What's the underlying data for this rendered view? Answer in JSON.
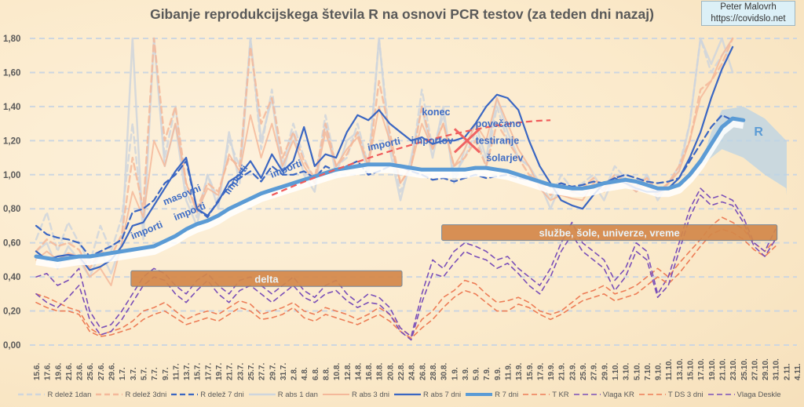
{
  "chart_data": {
    "type": "line",
    "title": "Gibanje reprodukcijskega števila R na osnovi PCR testov (za teden dni nazaj)",
    "credit": [
      "Peter Malovrh",
      "https://covidslo.net"
    ],
    "xlabel": "",
    "ylabel": "",
    "ylim": [
      0,
      1.8
    ],
    "yticks": [
      "0,00",
      "0,20",
      "0,40",
      "0,60",
      "0,80",
      "1,00",
      "1,20",
      "1,40",
      "1,60",
      "1,80"
    ],
    "ytick_values": [
      0,
      0.2,
      0.4,
      0.6,
      0.8,
      1.0,
      1.2,
      1.4,
      1.6,
      1.8
    ],
    "grid": true,
    "legend_position": "bottom",
    "x": [
      "15.6.",
      "17.6.",
      "19.6.",
      "21.6.",
      "23.6.",
      "25.6.",
      "27.6.",
      "29.6.",
      "1.7.",
      "3.7.",
      "5.7.",
      "7.7.",
      "9.7.",
      "11.7.",
      "13.7.",
      "15.7.",
      "17.7.",
      "19.7.",
      "21.7.",
      "23.7.",
      "25.7.",
      "27.7.",
      "29.7.",
      "31.7.",
      "2.8.",
      "4.8.",
      "6.8.",
      "8.8.",
      "10.8.",
      "12.8.",
      "14.8.",
      "16.8.",
      "18.8.",
      "20.8.",
      "22.8.",
      "24.8.",
      "26.8.",
      "28.8.",
      "30.8.",
      "1.9.",
      "3.9.",
      "5.9.",
      "7.9.",
      "9.9.",
      "11.9.",
      "13.9.",
      "15.9.",
      "17.9.",
      "19.9.",
      "21.9.",
      "23.9.",
      "25.9.",
      "27.9.",
      "29.9.",
      "1.10.",
      "3.10.",
      "5.10.",
      "7.10.",
      "9.10.",
      "11.10.",
      "13.10.",
      "15.10.",
      "17.10.",
      "19.10.",
      "21.10.",
      "23.10.",
      "25.10.",
      "27.10.",
      "29.10.",
      "31.10.",
      "2.11.",
      "4.11."
    ],
    "series": [
      {
        "name": "R delež 1dan",
        "color": "#cfd5dc",
        "style": "dash",
        "width": 2.5,
        "values": [
          0.62,
          0.78,
          0.55,
          0.72,
          0.6,
          0.48,
          0.7,
          0.55,
          0.75,
          1.3,
          0.7,
          1.8,
          1.1,
          1.4,
          0.9,
          0.75,
          1.0,
          0.85,
          1.2,
          1.05,
          1.8,
          1.15,
          1.5,
          1.05,
          1.3,
          1.1,
          0.95,
          1.35,
          1.05,
          1.1,
          1.3,
          1.05,
          1.8,
          1.2,
          0.9,
          1.05,
          1.5,
          1.15,
          1.35,
          1.0,
          1.1,
          1.25,
          1.05,
          1.4,
          1.2,
          1.1,
          1.05,
          0.95,
          0.85,
          1.0,
          0.92,
          0.95,
          1.0,
          0.9,
          1.05,
          0.98,
          0.92,
          1.0,
          0.88,
          0.95,
          1.05,
          1.3,
          1.8,
          1.6,
          1.7,
          1.8,
          null,
          null,
          null,
          null,
          null,
          null
        ]
      },
      {
        "name": "R delež 3dni",
        "color": "#f4b89a",
        "style": "dash",
        "width": 2.5,
        "values": [
          0.55,
          0.62,
          0.58,
          0.6,
          0.56,
          0.45,
          0.55,
          0.52,
          0.65,
          1.1,
          0.8,
          1.8,
          1.2,
          1.4,
          0.95,
          0.8,
          0.95,
          0.9,
          1.1,
          1.05,
          1.75,
          1.3,
          1.45,
          1.1,
          1.25,
          1.08,
          0.98,
          1.3,
          1.05,
          1.12,
          1.25,
          1.05,
          1.55,
          1.25,
          0.95,
          1.05,
          1.4,
          1.15,
          1.3,
          1.05,
          1.1,
          1.2,
          1.05,
          1.3,
          1.2,
          1.1,
          1.0,
          0.95,
          0.88,
          0.95,
          0.9,
          0.92,
          0.98,
          0.92,
          1.0,
          0.96,
          0.93,
          0.98,
          0.9,
          0.95,
          1.05,
          1.2,
          1.5,
          1.55,
          1.65,
          1.8,
          null,
          null,
          null,
          null,
          null,
          null
        ]
      },
      {
        "name": "R delež 7 dni",
        "color": "#3a66c2",
        "style": "dash",
        "width": 2.2,
        "values": [
          0.7,
          0.65,
          0.63,
          0.62,
          0.6,
          0.52,
          0.55,
          0.58,
          0.62,
          0.78,
          0.8,
          0.85,
          0.95,
          1.0,
          1.08,
          0.8,
          0.75,
          0.85,
          0.93,
          0.98,
          1.02,
          0.96,
          1.05,
          1.0,
          1.0,
          1.02,
          0.98,
          1.05,
          1.02,
          1.05,
          1.08,
          1.0,
          1.02,
          1.05,
          1.05,
          1.02,
          1.0,
          0.97,
          0.98,
          0.96,
          0.98,
          1.0,
          0.98,
          0.99,
          1.0,
          0.98,
          0.97,
          0.95,
          0.93,
          0.95,
          0.93,
          0.94,
          0.96,
          0.95,
          0.98,
          1.0,
          0.98,
          0.96,
          0.95,
          0.96,
          0.98,
          1.08,
          1.18,
          1.28,
          1.35,
          1.32,
          null,
          null,
          null,
          null,
          null,
          null
        ]
      },
      {
        "name": "R abs 1 dan",
        "color": "#cfd5dc",
        "style": "solid",
        "width": 2.5,
        "values": [
          0.55,
          0.6,
          0.45,
          0.58,
          0.5,
          0.4,
          0.55,
          0.42,
          0.6,
          1.8,
          0.62,
          1.8,
          1.05,
          1.3,
          0.85,
          0.7,
          1.0,
          0.8,
          1.25,
          0.95,
          1.8,
          1.2,
          1.45,
          1.0,
          1.25,
          1.0,
          0.9,
          1.3,
          1.0,
          1.2,
          1.25,
          1.0,
          1.8,
          1.15,
          0.85,
          1.1,
          1.4,
          1.1,
          1.4,
          0.95,
          1.15,
          1.3,
          1.1,
          1.45,
          1.25,
          1.1,
          1.05,
          0.95,
          0.8,
          0.95,
          0.9,
          0.88,
          0.95,
          0.85,
          1.0,
          0.98,
          0.9,
          1.0,
          0.85,
          0.95,
          1.02,
          1.3,
          1.8,
          1.65,
          1.8,
          1.6,
          null,
          null,
          null,
          null,
          null,
          null
        ]
      },
      {
        "name": "R abs 3 dni",
        "color": "#f4b89a",
        "style": "solid",
        "width": 2,
        "values": [
          0.5,
          0.55,
          0.5,
          0.54,
          0.52,
          0.4,
          0.45,
          0.35,
          0.6,
          0.9,
          0.75,
          1.2,
          1.05,
          1.3,
          0.95,
          0.78,
          0.92,
          0.88,
          1.12,
          1.02,
          1.35,
          1.1,
          1.3,
          1.05,
          1.2,
          1.05,
          0.95,
          1.25,
          1.05,
          1.15,
          1.22,
          1.05,
          1.4,
          1.2,
          0.95,
          1.05,
          1.3,
          1.15,
          1.3,
          1.05,
          1.15,
          1.3,
          1.2,
          1.45,
          1.3,
          1.15,
          1.05,
          0.92,
          0.85,
          0.88,
          0.86,
          0.85,
          0.95,
          0.9,
          0.98,
          0.95,
          0.9,
          0.95,
          0.88,
          0.95,
          1.02,
          1.2,
          1.45,
          1.55,
          1.7,
          1.8,
          null,
          null,
          null,
          null,
          null,
          null
        ]
      },
      {
        "name": "R abs 7 dni",
        "color": "#3a66c2",
        "style": "solid",
        "width": 2.2,
        "values": [
          0.55,
          0.5,
          0.52,
          0.53,
          0.52,
          0.44,
          0.46,
          0.5,
          0.58,
          0.7,
          0.72,
          0.82,
          0.92,
          1.02,
          1.1,
          0.8,
          0.76,
          0.84,
          0.96,
          1.0,
          1.08,
          0.98,
          1.12,
          1.02,
          1.08,
          1.28,
          1.05,
          1.12,
          1.1,
          1.25,
          1.35,
          1.32,
          1.38,
          1.3,
          1.25,
          1.2,
          1.22,
          1.18,
          1.2,
          1.2,
          1.22,
          1.3,
          1.4,
          1.47,
          1.45,
          1.38,
          1.2,
          1.05,
          0.95,
          0.85,
          0.82,
          0.8,
          0.88,
          0.95,
          0.98,
          0.95,
          0.92,
          0.9,
          0.9,
          0.92,
          0.98,
          1.1,
          1.25,
          1.45,
          1.62,
          1.75,
          null,
          null,
          null,
          null,
          null,
          null
        ]
      },
      {
        "name": "R 7 dni",
        "color": "#5b9bd5",
        "style": "solid",
        "width": 5,
        "values": [
          0.52,
          0.51,
          0.5,
          0.51,
          0.52,
          0.52,
          0.53,
          0.54,
          0.55,
          0.56,
          0.57,
          0.58,
          0.61,
          0.64,
          0.68,
          0.71,
          0.73,
          0.76,
          0.8,
          0.83,
          0.86,
          0.89,
          0.91,
          0.93,
          0.95,
          0.97,
          0.99,
          1.01,
          1.03,
          1.04,
          1.05,
          1.06,
          1.06,
          1.06,
          1.05,
          1.04,
          1.03,
          1.03,
          1.03,
          1.03,
          1.03,
          1.04,
          1.04,
          1.03,
          1.02,
          1.0,
          0.98,
          0.96,
          0.94,
          0.93,
          0.92,
          0.92,
          0.93,
          0.95,
          0.96,
          0.97,
          0.96,
          0.94,
          0.92,
          0.92,
          0.94,
          1.0,
          1.08,
          1.18,
          1.28,
          1.33,
          1.32,
          null,
          null,
          null,
          null,
          null
        ]
      },
      {
        "name": "T KR",
        "color": "#ed7d57",
        "style": "dash",
        "width": 1.6,
        "values": [
          0.3,
          0.28,
          0.25,
          0.22,
          0.2,
          0.1,
          0.06,
          0.08,
          0.1,
          0.14,
          0.2,
          0.22,
          0.25,
          0.2,
          0.15,
          0.18,
          0.2,
          0.18,
          0.22,
          0.26,
          0.24,
          0.18,
          0.2,
          0.22,
          0.25,
          0.2,
          0.18,
          0.22,
          0.2,
          0.18,
          0.15,
          0.18,
          0.22,
          0.18,
          0.1,
          0.05,
          0.15,
          0.2,
          0.28,
          0.32,
          0.38,
          0.36,
          0.3,
          0.25,
          0.26,
          0.28,
          0.25,
          0.2,
          0.18,
          0.2,
          0.25,
          0.3,
          0.32,
          0.35,
          0.3,
          0.32,
          0.35,
          0.4,
          0.45,
          0.4,
          0.48,
          0.55,
          0.62,
          0.7,
          0.75,
          0.72,
          0.68,
          0.6,
          0.55,
          0.62,
          null,
          null
        ]
      },
      {
        "name": "Vlaga KR",
        "color": "#7a4fb8",
        "style": "dash",
        "width": 1.6,
        "values": [
          0.4,
          0.42,
          0.35,
          0.38,
          0.45,
          0.2,
          0.1,
          0.12,
          0.2,
          0.3,
          0.4,
          0.45,
          0.42,
          0.35,
          0.3,
          0.38,
          0.42,
          0.35,
          0.3,
          0.38,
          0.4,
          0.35,
          0.3,
          0.35,
          0.4,
          0.32,
          0.28,
          0.35,
          0.38,
          0.3,
          0.25,
          0.3,
          0.28,
          0.22,
          0.1,
          0.05,
          0.3,
          0.5,
          0.45,
          0.55,
          0.6,
          0.58,
          0.55,
          0.5,
          0.52,
          0.45,
          0.4,
          0.35,
          0.45,
          0.6,
          0.72,
          0.6,
          0.55,
          0.5,
          0.38,
          0.45,
          0.6,
          0.55,
          0.3,
          0.4,
          0.6,
          0.8,
          0.92,
          0.86,
          0.88,
          0.85,
          0.75,
          0.6,
          0.55,
          0.68,
          null,
          null
        ]
      },
      {
        "name": "T DS 3 dni",
        "color": "#ed7d57",
        "style": "dash",
        "width": 1.6,
        "values": [
          0.25,
          0.22,
          0.2,
          0.2,
          0.18,
          0.08,
          0.05,
          0.06,
          0.08,
          0.1,
          0.15,
          0.18,
          0.2,
          0.16,
          0.12,
          0.14,
          0.16,
          0.14,
          0.18,
          0.22,
          0.2,
          0.15,
          0.16,
          0.18,
          0.22,
          0.16,
          0.14,
          0.18,
          0.16,
          0.14,
          0.12,
          0.15,
          0.18,
          0.14,
          0.08,
          0.04,
          0.1,
          0.15,
          0.22,
          0.28,
          0.32,
          0.3,
          0.25,
          0.2,
          0.2,
          0.24,
          0.22,
          0.18,
          0.15,
          0.18,
          0.22,
          0.26,
          0.28,
          0.3,
          0.26,
          0.28,
          0.3,
          0.35,
          0.4,
          0.36,
          0.42,
          0.5,
          0.58,
          0.65,
          0.68,
          0.66,
          0.62,
          0.56,
          0.52,
          0.58,
          null,
          null
        ]
      },
      {
        "name": "Vlaga Deskle",
        "color": "#7a4fb8",
        "style": "dash",
        "width": 1.6,
        "values": [
          0.3,
          0.25,
          0.22,
          0.28,
          0.35,
          0.15,
          0.06,
          0.08,
          0.15,
          0.25,
          0.35,
          0.4,
          0.38,
          0.3,
          0.25,
          0.32,
          0.38,
          0.3,
          0.25,
          0.32,
          0.35,
          0.3,
          0.25,
          0.3,
          0.35,
          0.28,
          0.25,
          0.3,
          0.32,
          0.26,
          0.22,
          0.25,
          0.24,
          0.18,
          0.08,
          0.03,
          0.25,
          0.42,
          0.4,
          0.48,
          0.55,
          0.52,
          0.5,
          0.45,
          0.48,
          0.42,
          0.35,
          0.3,
          0.4,
          0.55,
          0.65,
          0.55,
          0.5,
          0.45,
          0.32,
          0.4,
          0.55,
          0.5,
          0.28,
          0.35,
          0.55,
          0.75,
          0.88,
          0.82,
          0.84,
          0.82,
          0.72,
          0.58,
          0.52,
          0.62,
          null,
          null
        ]
      }
    ],
    "projection": {
      "name": "R",
      "label": "R",
      "color": "#b9d3e6"
    },
    "trend_line": {
      "color": "#f05b5b",
      "style": "dash",
      "values_from_to": [
        [
          "29.7.",
          0.88
        ],
        [
          "19.9.",
          1.32
        ]
      ]
    },
    "annotations": [
      {
        "text": "importi",
        "x": "3.7.",
        "y": 0.62
      },
      {
        "text": "masovni",
        "x": "9.7.",
        "y": 0.82
      },
      {
        "text": "importi",
        "x": "11.7.",
        "y": 0.73
      },
      {
        "text": "importi",
        "x": "21.7.",
        "y": 0.88
      },
      {
        "text": "importi",
        "x": "29.7.",
        "y": 0.98
      },
      {
        "text": "importi",
        "x": "16.8.",
        "y": 1.14
      },
      {
        "text": "konec",
        "x": "26.8.",
        "y": 1.35
      },
      {
        "text": "importov",
        "x": "24.8.",
        "y": 1.18
      },
      {
        "text": "povečano",
        "x": "5.9.",
        "y": 1.28
      },
      {
        "text": "testiranje",
        "x": "5.9.",
        "y": 1.18
      },
      {
        "text": "šolarjev",
        "x": "7.9.",
        "y": 1.08
      },
      {
        "text": "R",
        "x": "27.10.",
        "y": 1.23
      }
    ],
    "boxes": [
      {
        "text": "delta",
        "from": "3.7.",
        "to": "22.8.",
        "y": 0.39,
        "color": "#d4884a"
      },
      {
        "text": "službe, šole, univerze, vreme",
        "from": "30.8.",
        "to": "31.10.",
        "y": 0.66,
        "color": "#d4884a"
      }
    ],
    "cross_marker": {
      "x": "3.9.",
      "y": 1.2,
      "color": "#f06262"
    }
  }
}
